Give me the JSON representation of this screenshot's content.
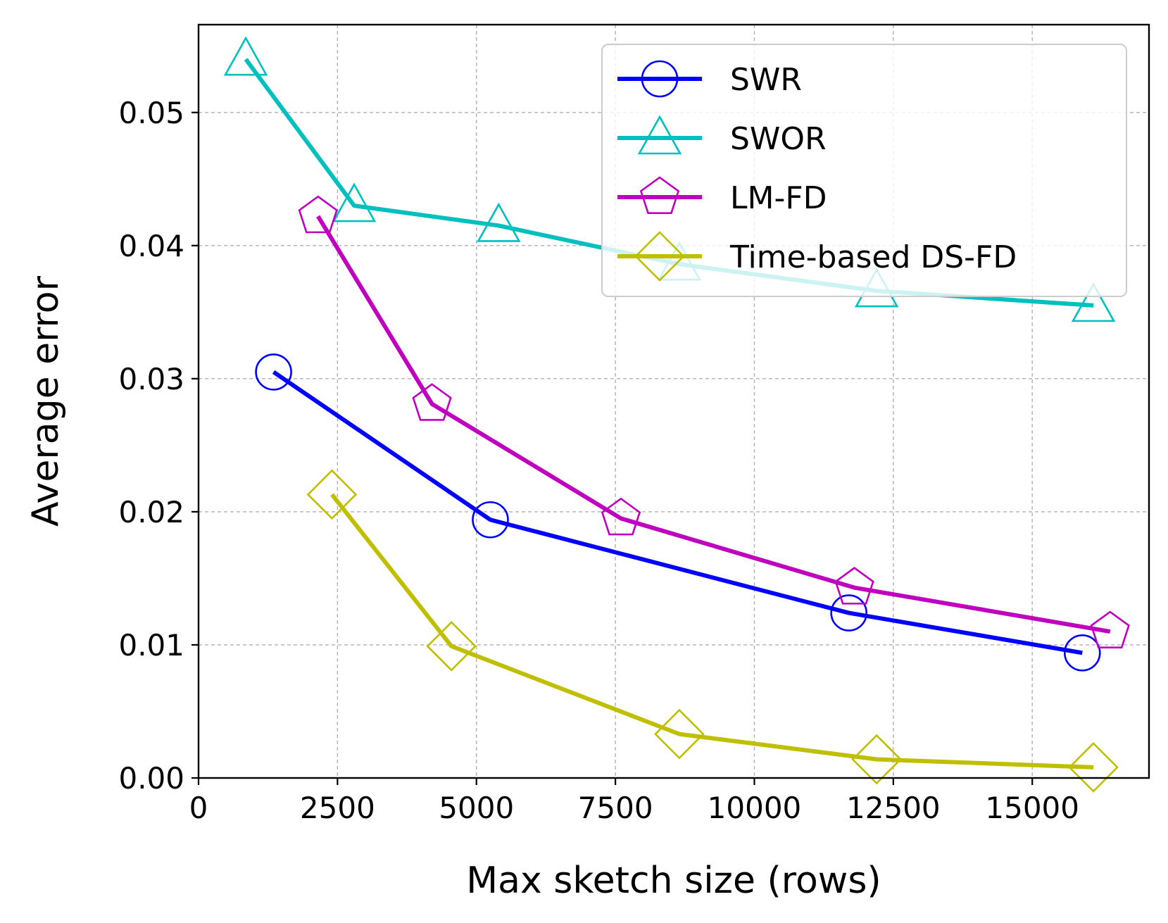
{
  "chart_data": {
    "type": "line",
    "title": "",
    "xlabel": "Max sketch size (rows)",
    "ylabel": "Average error",
    "xlim": [
      0,
      17100
    ],
    "ylim": [
      0,
      0.0566
    ],
    "xticks": [
      0,
      2500,
      5000,
      7500,
      10000,
      12500,
      15000
    ],
    "xtick_labels": [
      "0",
      "2500",
      "5000",
      "7500",
      "10000",
      "12500",
      "15000"
    ],
    "yticks": [
      0.0,
      0.01,
      0.02,
      0.03,
      0.04,
      0.05
    ],
    "ytick_labels": [
      "0.00",
      "0.01",
      "0.02",
      "0.03",
      "0.04",
      "0.05"
    ],
    "grid": true,
    "legend_position": "top-right",
    "series": [
      {
        "name": "SWR",
        "color": "#0000ff",
        "marker": "circle",
        "x": [
          1350,
          5250,
          11700,
          15900
        ],
        "y": [
          0.0305,
          0.0194,
          0.0124,
          0.0094
        ]
      },
      {
        "name": "SWOR",
        "color": "#00bfbf",
        "marker": "triangle",
        "x": [
          850,
          2800,
          5400,
          8650,
          12200,
          16100
        ],
        "y": [
          0.054,
          0.043,
          0.0415,
          0.0386,
          0.0366,
          0.0355
        ]
      },
      {
        "name": "LM-FD",
        "color": "#bf00bf",
        "marker": "pentagon",
        "x": [
          2150,
          4200,
          7600,
          11800,
          16400
        ],
        "y": [
          0.0422,
          0.0281,
          0.0195,
          0.0143,
          0.011
        ]
      },
      {
        "name": "Time-based DS-FD",
        "color": "#bfbf00",
        "marker": "diamond",
        "x": [
          2400,
          4550,
          8650,
          12200,
          16100
        ],
        "y": [
          0.0213,
          0.0099,
          0.0033,
          0.0014,
          0.0008
        ]
      }
    ]
  }
}
